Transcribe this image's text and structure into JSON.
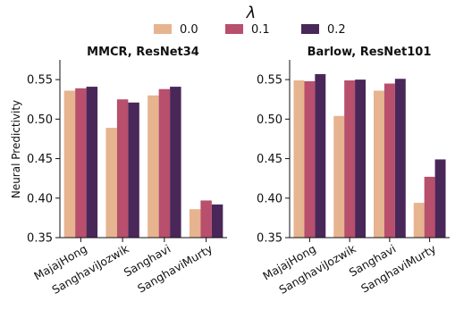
{
  "legend": {
    "title": "λ",
    "entries": [
      {
        "label": "0.0",
        "color": "#e6b48f"
      },
      {
        "label": "0.1",
        "color": "#b84f6c"
      },
      {
        "label": "0.2",
        "color": "#4a2759"
      }
    ]
  },
  "chart_data": [
    {
      "type": "bar",
      "title": "MMCR, ResNet34",
      "ylabel": "Neural Predictivity",
      "xlabel": "",
      "ylim": [
        0.35,
        0.575
      ],
      "yticks": [
        "0.35",
        "0.40",
        "0.45",
        "0.50",
        "0.55"
      ],
      "categories": [
        "MajajHong",
        "SanghaviJozwik",
        "Sanghavi",
        "SanghaviMurty"
      ],
      "series": [
        {
          "name": "0.0",
          "values": [
            0.536,
            0.489,
            0.53,
            0.386
          ]
        },
        {
          "name": "0.1",
          "values": [
            0.539,
            0.525,
            0.538,
            0.397
          ]
        },
        {
          "name": "0.2",
          "values": [
            0.541,
            0.521,
            0.541,
            0.392
          ]
        }
      ]
    },
    {
      "type": "bar",
      "title": "Barlow, ResNet101",
      "ylabel": "",
      "xlabel": "",
      "ylim": [
        0.35,
        0.575
      ],
      "yticks": [
        "0.35",
        "0.40",
        "0.45",
        "0.50",
        "0.55"
      ],
      "categories": [
        "MajajHong",
        "SanghaviJozwik",
        "Sanghavi",
        "SanghaviMurty"
      ],
      "series": [
        {
          "name": "0.0",
          "values": [
            0.549,
            0.504,
            0.536,
            0.394
          ]
        },
        {
          "name": "0.1",
          "values": [
            0.548,
            0.549,
            0.545,
            0.427
          ]
        },
        {
          "name": "0.2",
          "values": [
            0.557,
            0.55,
            0.551,
            0.449
          ]
        }
      ]
    }
  ]
}
